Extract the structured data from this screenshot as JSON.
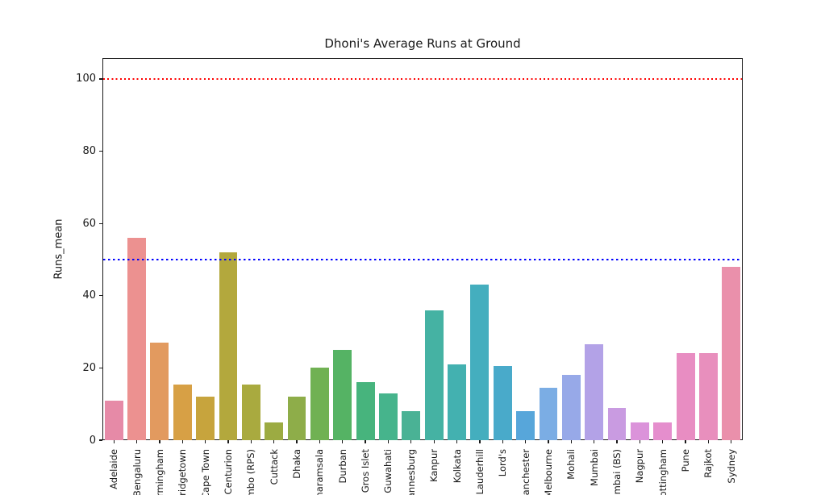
{
  "figure": {
    "background": "#ffffff",
    "spine_color": "#1a1a1a",
    "text_color": "#262626"
  },
  "chart_data": {
    "type": "bar",
    "title": "Dhoni's Average Runs at Ground",
    "xlabel": "",
    "ylabel": "Runs_mean",
    "ylim": [
      0,
      105.8
    ],
    "yticks": [
      0,
      20,
      40,
      60,
      80,
      100
    ],
    "grid": false,
    "legend": false,
    "x_tick_rotation_degrees": 90,
    "categories": [
      "Adelaide",
      "Bengaluru",
      "Birmingham",
      "Bridgetown",
      "Cape Town",
      "Centurion",
      "Colombo (RPS)",
      "Cuttack",
      "Dhaka",
      "Dharamsala",
      "Durban",
      "Gros Islet",
      "Guwahati",
      "Johannesburg",
      "Kanpur",
      "Kolkata",
      "Lauderhill",
      "Lord's",
      "Manchester",
      "Melbourne",
      "Mohali",
      "Mumbai",
      "Mumbai (BS)",
      "Nagpur",
      "Nottingham",
      "Pune",
      "Rajkot",
      "Sydney"
    ],
    "values": [
      11,
      56,
      27,
      15.5,
      12,
      52,
      15.5,
      5,
      12,
      20,
      25,
      16,
      13,
      8,
      36,
      21,
      43,
      20.5,
      8,
      14.5,
      18,
      26.5,
      9,
      5,
      5,
      24,
      24,
      48
    ],
    "bar_colors": [
      "#e68aa7",
      "#ec9190",
      "#e29a5f",
      "#d7a045",
      "#c7a43d",
      "#b3a83d",
      "#a9aa3f",
      "#9cab42",
      "#8ead49",
      "#70b153",
      "#55b364",
      "#47b47d",
      "#46b48c",
      "#4ab295",
      "#45b2a3",
      "#43b1b0",
      "#44aebe",
      "#49aaca",
      "#57a6da",
      "#7bade4",
      "#97a9e8",
      "#b3a2e7",
      "#c99be1",
      "#db93da",
      "#e58ecd",
      "#e88dc2",
      "#e88fbd",
      "#ea90ab"
    ],
    "reference_lines": [
      {
        "name": "century-line",
        "y": 100,
        "color": "#ff0000",
        "style": "dotted"
      },
      {
        "name": "fifty-line",
        "y": 50,
        "color": "#0000ff",
        "style": "dotted"
      }
    ]
  }
}
